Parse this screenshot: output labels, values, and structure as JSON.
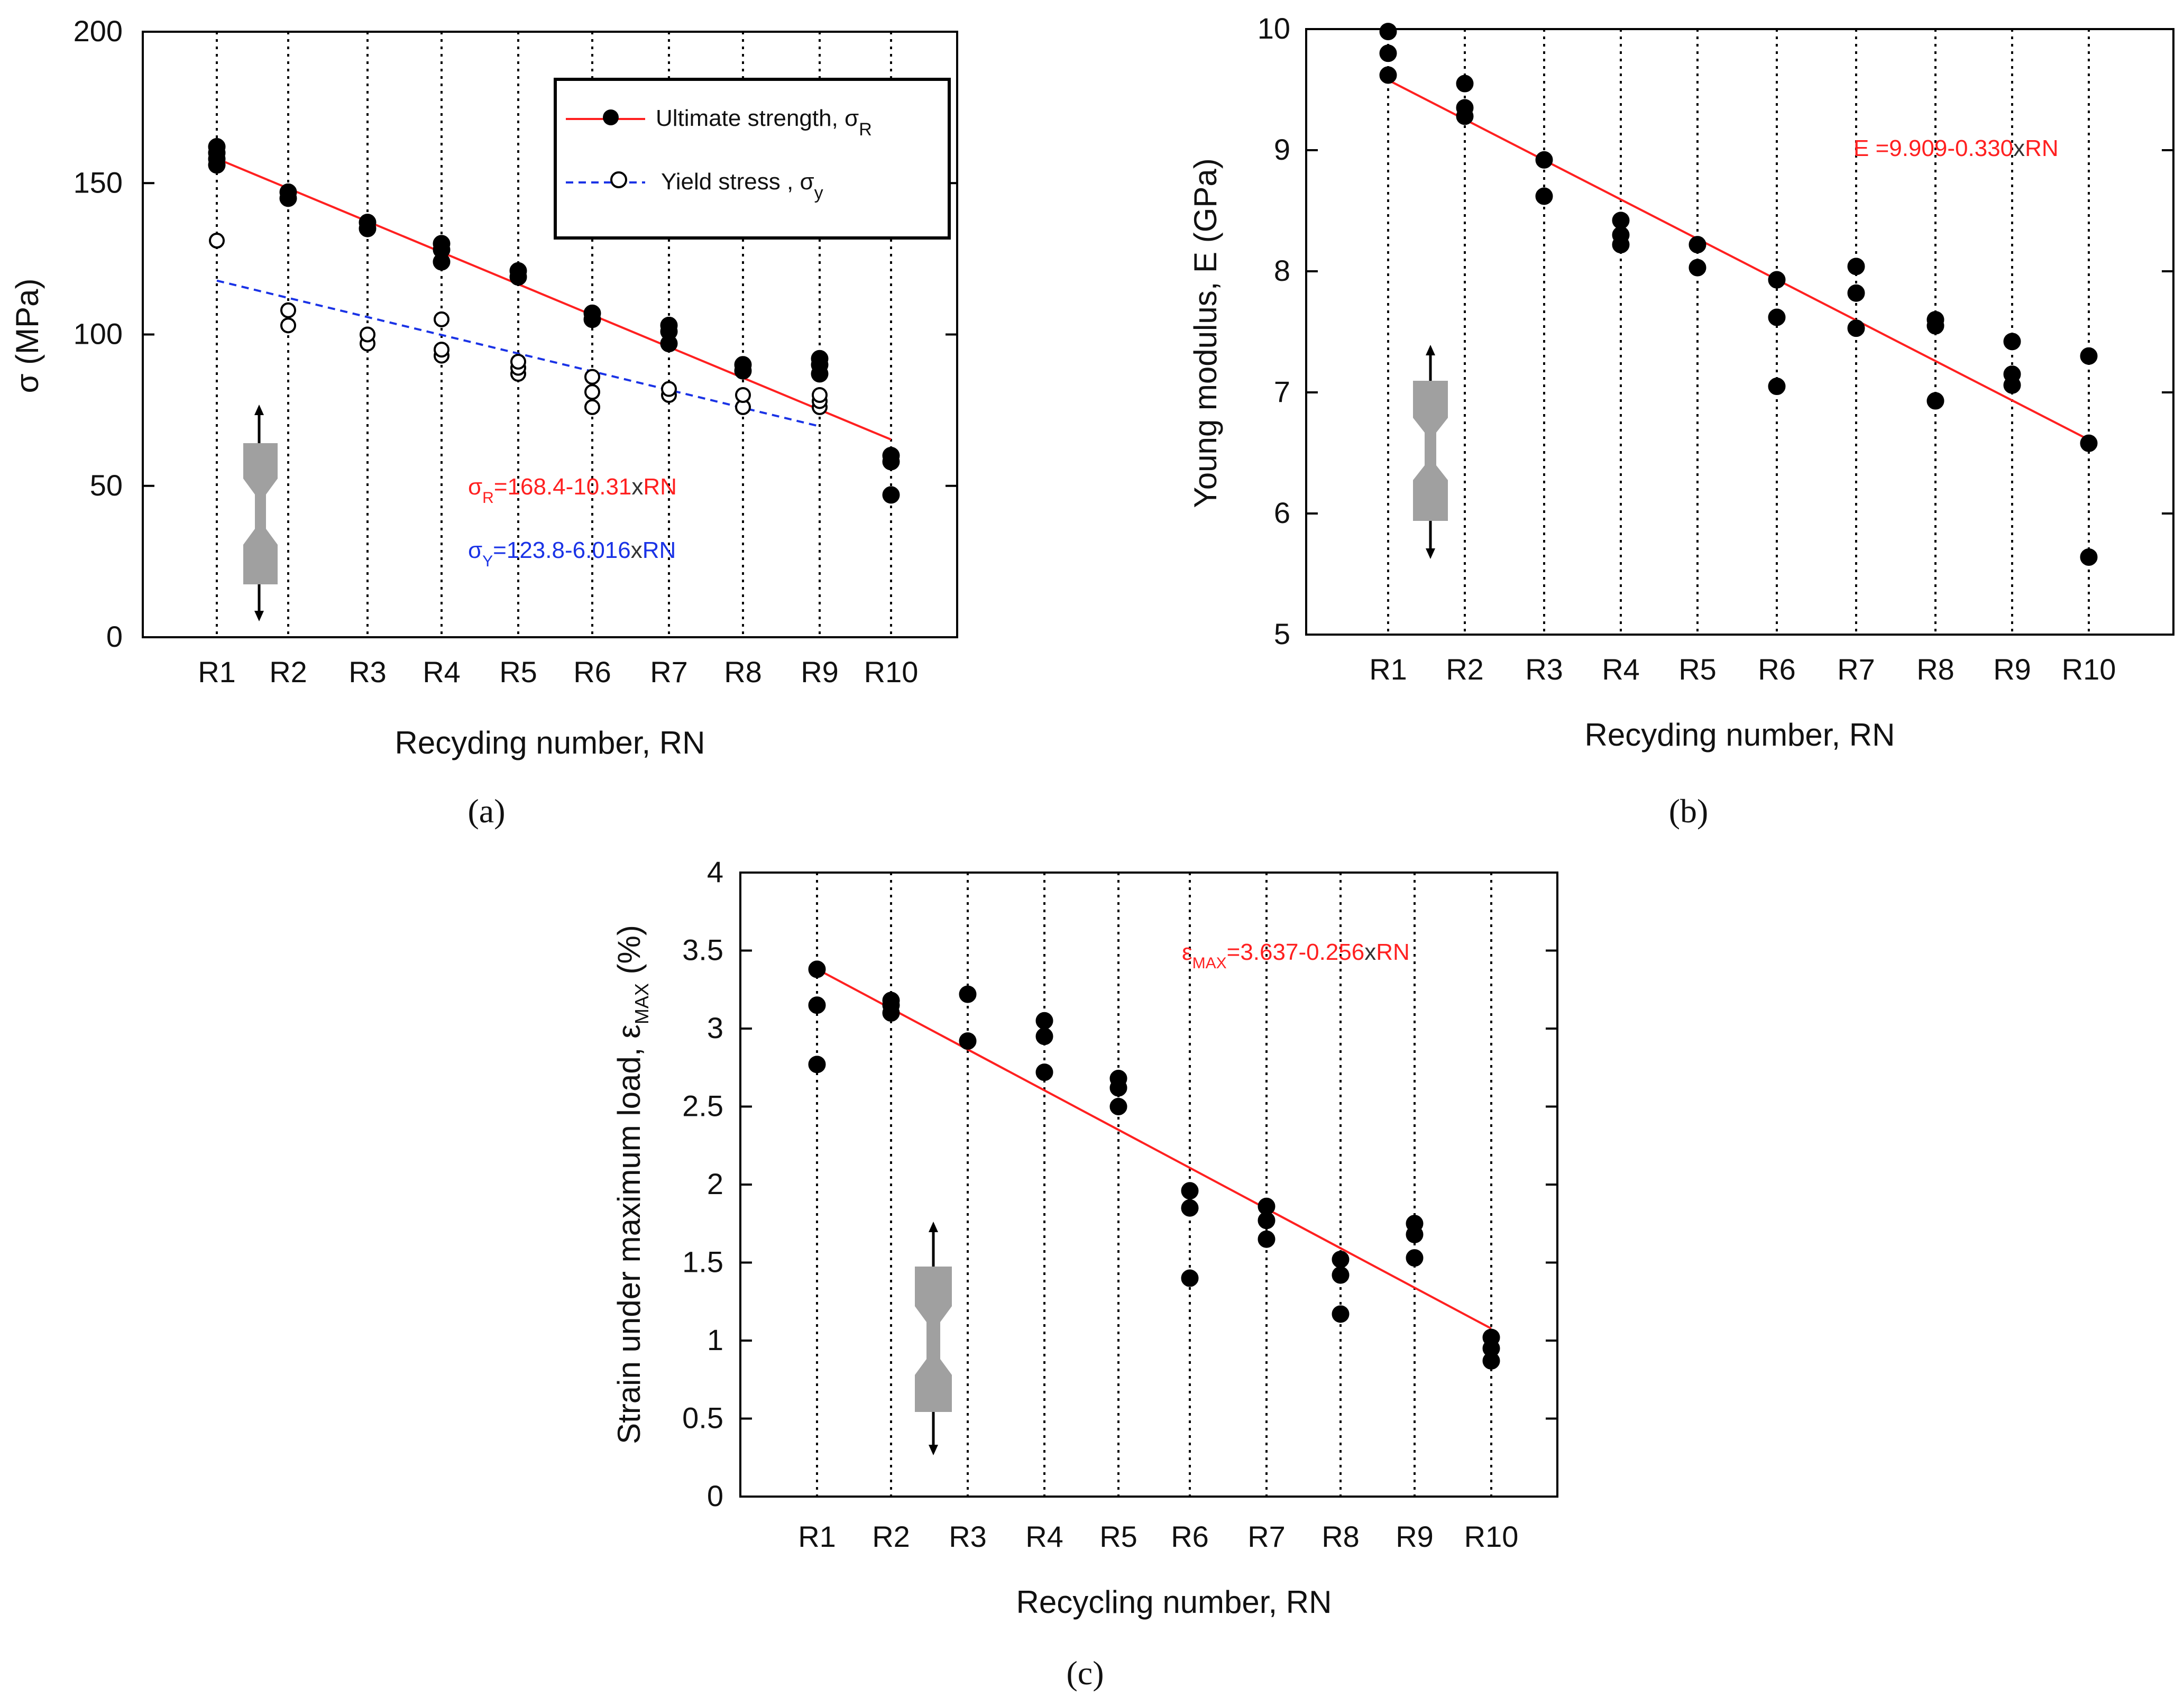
{
  "colors": {
    "fit_red": "#ff2020",
    "fit_blue": "#1a33e6",
    "marker": "#000000",
    "specimen": "#a0a0a0"
  },
  "icons": [
    "dogbone-specimen-icon",
    "arrow-up-icon",
    "arrow-down-icon"
  ],
  "chart_data": [
    {
      "panel_label": "(a)",
      "type": "scatter",
      "categories": [
        "R1",
        "R2",
        "R3",
        "R4",
        "R5",
        "R6",
        "R7",
        "R8",
        "R9",
        "R10"
      ],
      "xlabel": "Recyding number, RN",
      "ylabel": "σ (MPa)",
      "ylim": [
        0,
        200
      ],
      "yticks": [
        "0",
        "50",
        "100",
        "150",
        "200"
      ],
      "grid": "vertical dotted lines at each category",
      "legend_position": "top-right",
      "series": [
        {
          "name": "Ultimate strength,  σ",
          "name_sub": "R",
          "marker": "filled-circle",
          "line": "solid red",
          "points": [
            [
              1,
              156
            ],
            [
              1,
              158
            ],
            [
              1,
              160
            ],
            [
              1,
              162
            ],
            [
              2,
              145
            ],
            [
              2,
              147
            ],
            [
              3,
              135
            ],
            [
              3,
              137
            ],
            [
              4,
              124
            ],
            [
              4,
              128
            ],
            [
              4,
              130
            ],
            [
              5,
              119
            ],
            [
              5,
              121
            ],
            [
              6,
              105
            ],
            [
              6,
              107
            ],
            [
              7,
              97
            ],
            [
              7,
              101
            ],
            [
              7,
              103
            ],
            [
              8,
              88
            ],
            [
              8,
              90
            ],
            [
              9,
              87
            ],
            [
              9,
              90
            ],
            [
              9,
              92
            ],
            [
              10,
              47
            ],
            [
              10,
              58
            ],
            [
              10,
              60
            ]
          ]
        },
        {
          "name": "Yield stress , σ",
          "name_sub": "y",
          "marker": "open-circle",
          "line": "dashed blue",
          "points": [
            [
              1,
              131
            ],
            [
              2,
              103
            ],
            [
              2,
              108
            ],
            [
              3,
              97
            ],
            [
              3,
              100
            ],
            [
              4,
              93
            ],
            [
              4,
              95
            ],
            [
              4,
              105
            ],
            [
              5,
              87
            ],
            [
              5,
              89
            ],
            [
              5,
              91
            ],
            [
              6,
              76
            ],
            [
              6,
              81
            ],
            [
              6,
              86
            ],
            [
              7,
              80
            ],
            [
              7,
              82
            ],
            [
              8,
              76
            ],
            [
              8,
              80
            ],
            [
              9,
              76
            ],
            [
              9,
              78
            ],
            [
              9,
              80
            ]
          ]
        }
      ],
      "fits": [
        {
          "label_sym": "σ",
          "label_sub": "R",
          "label_rest": "=168.4-10.31",
          "label_x": "x",
          "label_tail": "RN",
          "intercept": 168.4,
          "slope": -10.31,
          "x_range": [
            1,
            10
          ]
        },
        {
          "label_sym": "σ",
          "label_sub": "Y",
          "label_rest": "=123.8-6.016",
          "label_x": "x",
          "label_tail": "RN",
          "intercept": 123.8,
          "slope": -6.016,
          "x_range": [
            1,
            9
          ]
        }
      ]
    },
    {
      "panel_label": "(b)",
      "type": "scatter",
      "categories": [
        "R1",
        "R2",
        "R3",
        "R4",
        "R5",
        "R6",
        "R7",
        "R8",
        "R9",
        "R10"
      ],
      "xlabel": "Recyding number, RN",
      "ylabel": "Young modulus, E (GPa)",
      "ylim": [
        5,
        10
      ],
      "yticks": [
        "5",
        "6",
        "7",
        "8",
        "9",
        "10"
      ],
      "grid": "vertical dotted lines at each category",
      "series": [
        {
          "marker": "filled-circle",
          "points": [
            [
              1,
              9.62
            ],
            [
              1,
              9.8
            ],
            [
              1,
              9.98
            ],
            [
              2,
              9.28
            ],
            [
              2,
              9.35
            ],
            [
              2,
              9.55
            ],
            [
              3,
              8.62
            ],
            [
              3,
              8.92
            ],
            [
              4,
              8.22
            ],
            [
              4,
              8.3
            ],
            [
              4,
              8.42
            ],
            [
              5,
              8.03
            ],
            [
              5,
              8.22
            ],
            [
              6,
              7.05
            ],
            [
              6,
              7.62
            ],
            [
              6,
              7.93
            ],
            [
              7,
              7.53
            ],
            [
              7,
              7.82
            ],
            [
              7,
              8.04
            ],
            [
              8,
              6.93
            ],
            [
              8,
              7.55
            ],
            [
              8,
              7.6
            ],
            [
              9,
              7.06
            ],
            [
              9,
              7.15
            ],
            [
              9,
              7.42
            ],
            [
              10,
              5.64
            ],
            [
              10,
              6.58
            ],
            [
              10,
              7.3
            ]
          ]
        }
      ],
      "fits": [
        {
          "label_sym": "E",
          "label_rest": " =9.909-0.330",
          "label_x": "x",
          "label_tail": "RN",
          "intercept": 9.909,
          "slope": -0.33,
          "x_range": [
            1,
            10
          ]
        }
      ]
    },
    {
      "panel_label": "(c)",
      "type": "scatter",
      "categories": [
        "R1",
        "R2",
        "R3",
        "R4",
        "R5",
        "R6",
        "R7",
        "R8",
        "R9",
        "R10"
      ],
      "xlabel": "Recycling number, RN",
      "ylabel": "Strain under maximum load,  ε",
      "ylabel_sub": "MAX",
      "ylabel_tail": " (%)",
      "ylim": [
        0,
        4
      ],
      "yticks": [
        "0",
        "0.5",
        "1",
        "1.5",
        "2",
        "2.5",
        "3",
        "3.5",
        "4"
      ],
      "grid": "vertical dotted lines at each category",
      "series": [
        {
          "marker": "filled-circle",
          "points": [
            [
              1,
              2.77
            ],
            [
              1,
              3.15
            ],
            [
              1,
              3.38
            ],
            [
              2,
              3.1
            ],
            [
              2,
              3.15
            ],
            [
              2,
              3.18
            ],
            [
              3,
              2.92
            ],
            [
              3,
              3.22
            ],
            [
              4,
              2.72
            ],
            [
              4,
              2.95
            ],
            [
              4,
              3.05
            ],
            [
              5,
              2.5
            ],
            [
              5,
              2.62
            ],
            [
              5,
              2.68
            ],
            [
              6,
              1.4
            ],
            [
              6,
              1.85
            ],
            [
              6,
              1.96
            ],
            [
              7,
              1.65
            ],
            [
              7,
              1.77
            ],
            [
              7,
              1.86
            ],
            [
              8,
              1.17
            ],
            [
              8,
              1.42
            ],
            [
              8,
              1.52
            ],
            [
              9,
              1.53
            ],
            [
              9,
              1.68
            ],
            [
              9,
              1.75
            ],
            [
              10,
              0.87
            ],
            [
              10,
              0.95
            ],
            [
              10,
              1.02
            ]
          ]
        }
      ],
      "fits": [
        {
          "label_sym": "ε",
          "label_sub": "MAX",
          "label_rest": "=3.637-0.256",
          "label_x": "x",
          "label_tail": "RN",
          "intercept": 3.637,
          "slope": -0.256,
          "x_range": [
            1,
            10
          ]
        }
      ]
    }
  ]
}
